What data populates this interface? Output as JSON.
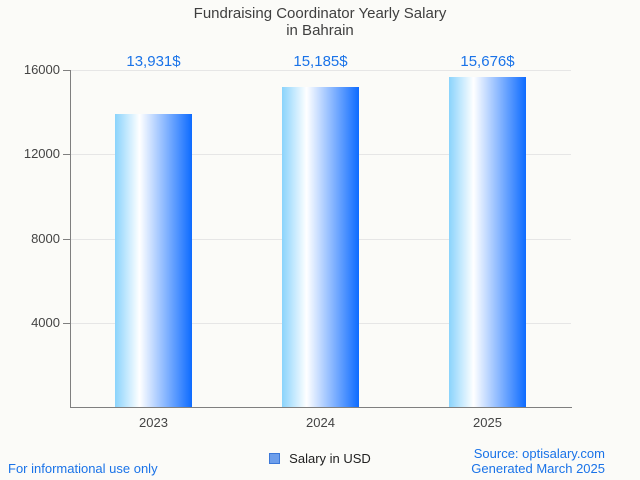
{
  "title": {
    "line1": "Fundraising Coordinator Yearly Salary",
    "line2": "in Bahrain"
  },
  "chart_data": {
    "type": "bar",
    "title": "Fundraising Coordinator Yearly Salary in Bahrain",
    "categories": [
      "2023",
      "2024",
      "2025"
    ],
    "values": [
      13931,
      15185,
      15676
    ],
    "value_labels": [
      "13,931$",
      "15,185$",
      "15,676$"
    ],
    "series_name": "Salary in USD",
    "xlabel": "",
    "ylabel": "",
    "ylim": [
      0,
      16000
    ],
    "yticks": [
      4000,
      8000,
      12000,
      16000
    ],
    "grid": true,
    "legend_position": "bottom"
  },
  "legend": {
    "label": "Salary in USD"
  },
  "footer": {
    "left": "For informational use only",
    "source": "Source: optisalary.com",
    "generated": "Generated March 2025"
  },
  "colors": {
    "background": "#fbfbf8",
    "bar_gradient": [
      "#8ad3fc",
      "#ffffff",
      "#0d6bff"
    ],
    "value_label": "#1a73e8",
    "footer_blue": "#1a73e8",
    "legend_fill": "#6d9eeb",
    "legend_border": "#3c78d8",
    "grid": "#e6e6e6",
    "axis": "#7f7f7f",
    "axis_text": "#444444",
    "title_text": "#3f3f3f"
  }
}
